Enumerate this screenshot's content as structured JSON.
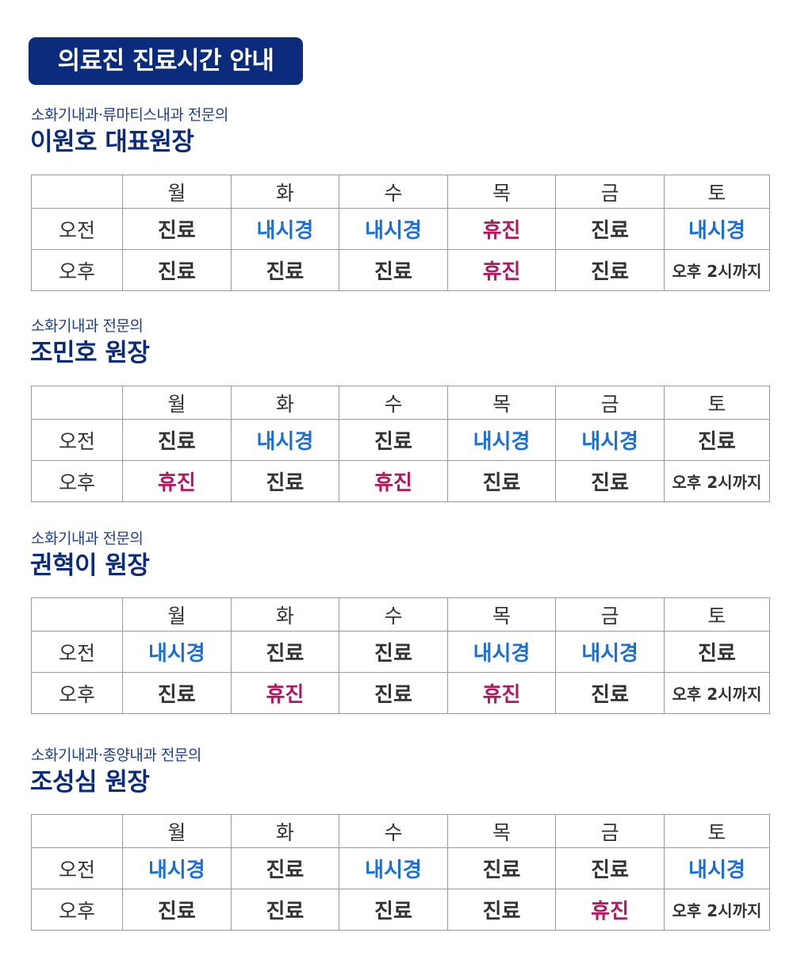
{
  "page_title": "의료진 진료시간 안내",
  "days": [
    "월",
    "화",
    "수",
    "목",
    "금",
    "토"
  ],
  "row_labels": [
    "오전",
    "오후"
  ],
  "status_colors": {
    "진료": "#333333",
    "내시경": "#1a6fd8",
    "휴진": "#b3195e",
    "오후 2시까지": "#333333"
  },
  "doctors": [
    {
      "specialty": "소화기내과·류마티스내과 전문의",
      "name": "이원호 대표원장",
      "am": [
        "진료",
        "내시경",
        "내시경",
        "휴진",
        "진료",
        "내시경"
      ],
      "pm": [
        "진료",
        "진료",
        "진료",
        "휴진",
        "진료",
        "오후 2시까지"
      ]
    },
    {
      "specialty": "소화기내과 전문의",
      "name": "조민호 원장",
      "am": [
        "진료",
        "내시경",
        "진료",
        "내시경",
        "내시경",
        "진료"
      ],
      "pm": [
        "휴진",
        "진료",
        "휴진",
        "진료",
        "진료",
        "오후 2시까지"
      ]
    },
    {
      "specialty": "소화기내과 전문의",
      "name": "권혁이 원장",
      "am": [
        "내시경",
        "진료",
        "진료",
        "내시경",
        "내시경",
        "진료"
      ],
      "pm": [
        "진료",
        "휴진",
        "진료",
        "휴진",
        "진료",
        "오후 2시까지"
      ]
    },
    {
      "specialty": "소화기내과·종양내과 전문의",
      "name": "조성심 원장",
      "am": [
        "내시경",
        "진료",
        "내시경",
        "진료",
        "진료",
        "내시경"
      ],
      "pm": [
        "진료",
        "진료",
        "진료",
        "진료",
        "휴진",
        "오후 2시까지"
      ]
    }
  ]
}
